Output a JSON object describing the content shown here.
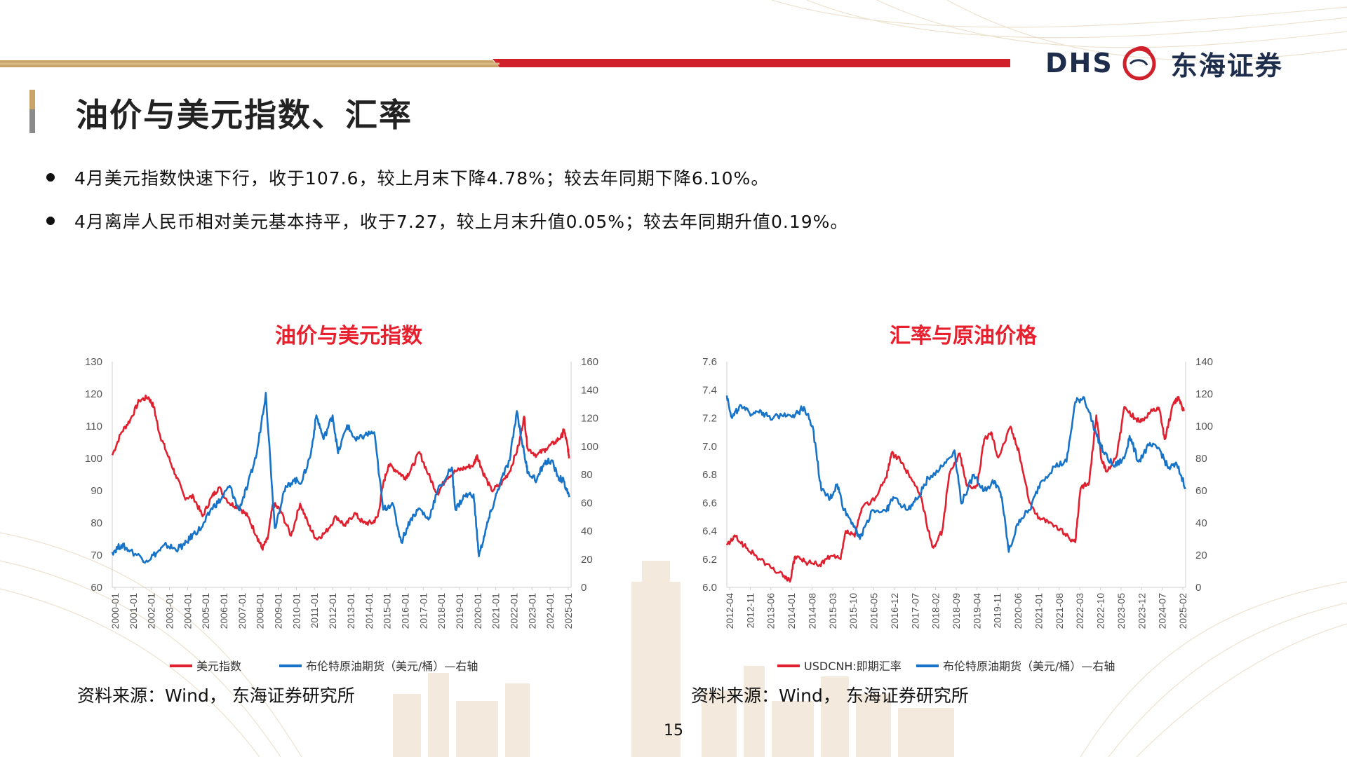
{
  "brand": {
    "latin": "DHS",
    "cn": "东海证券",
    "colors": {
      "gold": "#c8a46a",
      "red": "#d0202c",
      "navy": "#1f2d4d"
    }
  },
  "page": {
    "title": "油价与美元指数、汇率",
    "bullets": [
      "4月美元指数快速下行，收于107.6，较上月末下降4.78%；较去年同期下降6.10%。",
      "4月离岸人民币相对美元基本持平，收于7.27，较上月末升值0.05%；较去年同期升值0.19%。"
    ],
    "page_number": "15"
  },
  "chart_data": [
    {
      "type": "line",
      "title": "油价与美元指数",
      "source": "资料来源：Wind， 东海证券研究所",
      "x_ticks": [
        "2000-01",
        "2001-01",
        "2002-01",
        "2003-01",
        "2004-01",
        "2005-01",
        "2006-01",
        "2007-01",
        "2008-01",
        "2009-01",
        "2010-01",
        "2011-01",
        "2012-01",
        "2013-01",
        "2014-01",
        "2015-01",
        "2016-01",
        "2017-01",
        "2018-01",
        "2019-01",
        "2020-01",
        "2021-01",
        "2022-01",
        "2023-01",
        "2024-01",
        "2025-01"
      ],
      "x_range": [
        2000.0,
        2025.4
      ],
      "y_left": {
        "min": 60,
        "max": 130,
        "ticks": [
          "130",
          "120",
          "110",
          "100",
          "90",
          "80",
          "70",
          "60"
        ]
      },
      "y_right": {
        "min": 0,
        "max": 160,
        "ticks": [
          "160",
          "140",
          "120",
          "100",
          "80",
          "60",
          "40",
          "20",
          "0"
        ]
      },
      "legend_position": "bottom",
      "series": [
        {
          "name": "美元指数",
          "axis": "left",
          "color": "#e0202e",
          "points": [
            [
              2000.0,
              101
            ],
            [
              2000.5,
              108
            ],
            [
              2001.0,
              112
            ],
            [
              2001.5,
              118
            ],
            [
              2002.0,
              119
            ],
            [
              2002.3,
              116
            ],
            [
              2002.6,
              108
            ],
            [
              2003.0,
              102
            ],
            [
              2003.5,
              95
            ],
            [
              2004.0,
              88
            ],
            [
              2004.5,
              88
            ],
            [
              2005.0,
              82
            ],
            [
              2005.5,
              88
            ],
            [
              2005.9,
              91
            ],
            [
              2006.5,
              86
            ],
            [
              2007.0,
              85
            ],
            [
              2007.5,
              82
            ],
            [
              2008.0,
              76
            ],
            [
              2008.3,
              72
            ],
            [
              2008.6,
              75
            ],
            [
              2008.9,
              86
            ],
            [
              2009.3,
              84
            ],
            [
              2009.9,
              76
            ],
            [
              2010.4,
              86
            ],
            [
              2010.9,
              79
            ],
            [
              2011.3,
              75
            ],
            [
              2011.8,
              77
            ],
            [
              2012.4,
              82
            ],
            [
              2012.9,
              79
            ],
            [
              2013.4,
              83
            ],
            [
              2013.9,
              80
            ],
            [
              2014.4,
              80
            ],
            [
              2014.7,
              82
            ],
            [
              2015.0,
              92
            ],
            [
              2015.3,
              98
            ],
            [
              2015.8,
              96
            ],
            [
              2016.2,
              94
            ],
            [
              2016.5,
              96
            ],
            [
              2017.0,
              102
            ],
            [
              2017.5,
              95
            ],
            [
              2018.0,
              89
            ],
            [
              2018.5,
              94
            ],
            [
              2019.0,
              96
            ],
            [
              2019.5,
              97
            ],
            [
              2020.0,
              98
            ],
            [
              2020.2,
              101
            ],
            [
              2020.5,
              96
            ],
            [
              2021.0,
              90
            ],
            [
              2021.5,
              92
            ],
            [
              2022.0,
              96
            ],
            [
              2022.5,
              104
            ],
            [
              2022.8,
              113
            ],
            [
              2023.0,
              103
            ],
            [
              2023.5,
              101
            ],
            [
              2024.0,
              103
            ],
            [
              2024.5,
              105
            ],
            [
              2024.9,
              107
            ],
            [
              2025.0,
              109
            ],
            [
              2025.2,
              104
            ],
            [
              2025.3,
              100
            ]
          ]
        },
        {
          "name": "布伦特原油期货（美元/桶）—右轴",
          "axis": "right",
          "color": "#1673c8",
          "points": [
            [
              2000.0,
              25
            ],
            [
              2000.5,
              30
            ],
            [
              2001.0,
              26
            ],
            [
              2001.9,
              19
            ],
            [
              2002.5,
              25
            ],
            [
              2003.0,
              30
            ],
            [
              2003.5,
              27
            ],
            [
              2004.0,
              30
            ],
            [
              2004.5,
              38
            ],
            [
              2005.0,
              43
            ],
            [
              2005.5,
              56
            ],
            [
              2006.0,
              62
            ],
            [
              2006.5,
              72
            ],
            [
              2007.0,
              55
            ],
            [
              2007.5,
              72
            ],
            [
              2008.0,
              95
            ],
            [
              2008.5,
              138
            ],
            [
              2009.0,
              42
            ],
            [
              2009.5,
              68
            ],
            [
              2010.0,
              76
            ],
            [
              2010.5,
              75
            ],
            [
              2011.0,
              95
            ],
            [
              2011.3,
              122
            ],
            [
              2011.7,
              105
            ],
            [
              2012.2,
              122
            ],
            [
              2012.5,
              95
            ],
            [
              2013.0,
              115
            ],
            [
              2013.5,
              104
            ],
            [
              2014.0,
              108
            ],
            [
              2014.5,
              110
            ],
            [
              2015.0,
              55
            ],
            [
              2015.5,
              60
            ],
            [
              2016.0,
              32
            ],
            [
              2016.5,
              48
            ],
            [
              2017.0,
              56
            ],
            [
              2017.5,
              48
            ],
            [
              2018.0,
              68
            ],
            [
              2018.8,
              85
            ],
            [
              2019.0,
              55
            ],
            [
              2019.5,
              65
            ],
            [
              2020.0,
              66
            ],
            [
              2020.3,
              22
            ],
            [
              2020.7,
              42
            ],
            [
              2021.0,
              55
            ],
            [
              2021.5,
              75
            ],
            [
              2022.0,
              90
            ],
            [
              2022.4,
              125
            ],
            [
              2022.8,
              95
            ],
            [
              2023.0,
              82
            ],
            [
              2023.5,
              76
            ],
            [
              2023.9,
              88
            ],
            [
              2024.3,
              90
            ],
            [
              2024.7,
              78
            ],
            [
              2025.0,
              75
            ],
            [
              2025.3,
              64
            ]
          ]
        }
      ]
    },
    {
      "type": "line",
      "title": "汇率与原油价格",
      "source": "资料来源：Wind， 东海证券研究所",
      "x_ticks": [
        "2012-04",
        "2012-11",
        "2013-06",
        "2014-01",
        "2014-08",
        "2015-03",
        "2015-10",
        "2016-05",
        "2016-12",
        "2017-07",
        "2018-02",
        "2018-09",
        "2019-04",
        "2019-11",
        "2020-06",
        "2021-01",
        "2021-08",
        "2022-03",
        "2022-10",
        "2023-05",
        "2023-12",
        "2024-07",
        "2025-02"
      ],
      "x_range": [
        2012.25,
        2025.35
      ],
      "y_left": {
        "min": 6.0,
        "max": 7.6,
        "ticks": [
          "7.6",
          "7.4",
          "7.2",
          "7.0",
          "6.8",
          "6.6",
          "6.4",
          "6.2",
          "6.0"
        ]
      },
      "y_right": {
        "min": 0,
        "max": 140,
        "ticks": [
          "140",
          "120",
          "100",
          "80",
          "60",
          "40",
          "20",
          "0"
        ]
      },
      "legend_position": "bottom",
      "series": [
        {
          "name": "USDCNH:即期汇率",
          "axis": "left",
          "color": "#e0202e",
          "points": [
            [
              2012.25,
              6.3
            ],
            [
              2012.5,
              6.36
            ],
            [
              2012.8,
              6.28
            ],
            [
              2013.1,
              6.22
            ],
            [
              2013.5,
              6.14
            ],
            [
              2013.9,
              6.08
            ],
            [
              2014.05,
              6.04
            ],
            [
              2014.2,
              6.22
            ],
            [
              2014.5,
              6.18
            ],
            [
              2014.9,
              6.16
            ],
            [
              2015.2,
              6.22
            ],
            [
              2015.5,
              6.2
            ],
            [
              2015.65,
              6.4
            ],
            [
              2015.9,
              6.36
            ],
            [
              2016.1,
              6.56
            ],
            [
              2016.5,
              6.64
            ],
            [
              2016.8,
              6.78
            ],
            [
              2016.95,
              6.95
            ],
            [
              2017.2,
              6.9
            ],
            [
              2017.5,
              6.78
            ],
            [
              2017.8,
              6.64
            ],
            [
              2018.0,
              6.4
            ],
            [
              2018.15,
              6.28
            ],
            [
              2018.4,
              6.4
            ],
            [
              2018.6,
              6.8
            ],
            [
              2018.9,
              6.95
            ],
            [
              2019.1,
              6.72
            ],
            [
              2019.4,
              6.72
            ],
            [
              2019.6,
              7.05
            ],
            [
              2019.8,
              7.1
            ],
            [
              2020.0,
              6.92
            ],
            [
              2020.35,
              7.14
            ],
            [
              2020.6,
              6.95
            ],
            [
              2020.9,
              6.6
            ],
            [
              2021.2,
              6.48
            ],
            [
              2021.5,
              6.46
            ],
            [
              2021.9,
              6.38
            ],
            [
              2022.2,
              6.32
            ],
            [
              2022.35,
              6.7
            ],
            [
              2022.6,
              6.75
            ],
            [
              2022.8,
              7.22
            ],
            [
              2022.95,
              6.9
            ],
            [
              2023.1,
              6.82
            ],
            [
              2023.4,
              6.95
            ],
            [
              2023.6,
              7.28
            ],
            [
              2023.9,
              7.2
            ],
            [
              2024.1,
              7.18
            ],
            [
              2024.4,
              7.25
            ],
            [
              2024.6,
              7.26
            ],
            [
              2024.75,
              7.05
            ],
            [
              2025.0,
              7.3
            ],
            [
              2025.15,
              7.35
            ],
            [
              2025.3,
              7.25
            ]
          ]
        },
        {
          "name": "布伦特原油期货（美元/桶）—右轴",
          "axis": "right",
          "color": "#1673c8",
          "points": [
            [
              2012.25,
              119
            ],
            [
              2012.4,
              105
            ],
            [
              2012.6,
              112
            ],
            [
              2012.9,
              108
            ],
            [
              2013.2,
              110
            ],
            [
              2013.5,
              104
            ],
            [
              2013.9,
              108
            ],
            [
              2014.2,
              107
            ],
            [
              2014.45,
              112
            ],
            [
              2014.7,
              100
            ],
            [
              2014.95,
              60
            ],
            [
              2015.2,
              55
            ],
            [
              2015.4,
              64
            ],
            [
              2015.6,
              48
            ],
            [
              2015.9,
              38
            ],
            [
              2016.05,
              30
            ],
            [
              2016.4,
              48
            ],
            [
              2016.8,
              47
            ],
            [
              2017.0,
              56
            ],
            [
              2017.4,
              48
            ],
            [
              2017.7,
              55
            ],
            [
              2018.0,
              68
            ],
            [
              2018.4,
              75
            ],
            [
              2018.75,
              85
            ],
            [
              2018.95,
              52
            ],
            [
              2019.3,
              70
            ],
            [
              2019.6,
              60
            ],
            [
              2019.9,
              66
            ],
            [
              2020.1,
              56
            ],
            [
              2020.3,
              22
            ],
            [
              2020.6,
              42
            ],
            [
              2020.9,
              48
            ],
            [
              2021.2,
              65
            ],
            [
              2021.6,
              75
            ],
            [
              2021.95,
              78
            ],
            [
              2022.2,
              115
            ],
            [
              2022.45,
              118
            ],
            [
              2022.8,
              95
            ],
            [
              2023.0,
              84
            ],
            [
              2023.3,
              75
            ],
            [
              2023.6,
              80
            ],
            [
              2023.75,
              94
            ],
            [
              2024.0,
              78
            ],
            [
              2024.3,
              88
            ],
            [
              2024.6,
              86
            ],
            [
              2024.85,
              74
            ],
            [
              2025.1,
              76
            ],
            [
              2025.35,
              62
            ]
          ]
        }
      ]
    }
  ]
}
